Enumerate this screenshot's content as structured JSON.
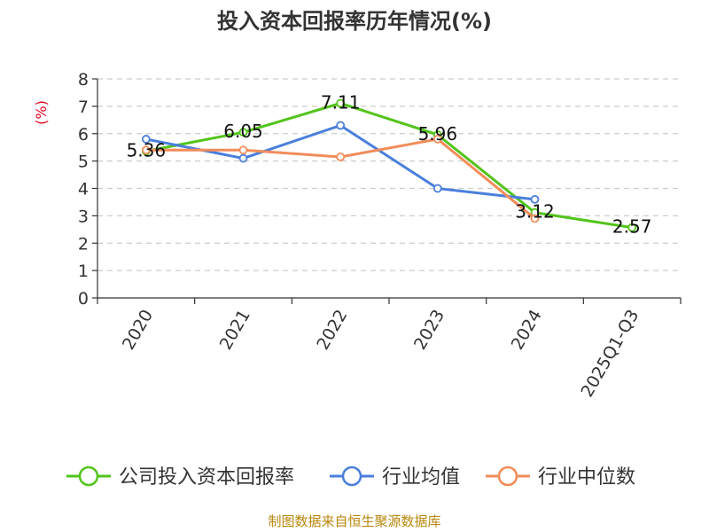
{
  "chart_data": {
    "type": "line",
    "title": "投入资本回报率历年情况(%)",
    "ylabel": "(%)",
    "xlabel": "",
    "ylim": [
      0,
      8
    ],
    "yticks": [
      0,
      1,
      2,
      3,
      4,
      5,
      6,
      7,
      8
    ],
    "grid": true,
    "legend_position": "bottom",
    "categories": [
      "2020",
      "2021",
      "2022",
      "2023",
      "2024",
      "2025Q1-Q3"
    ],
    "series": [
      {
        "name": "公司投入资本回报率",
        "color": "#52c41a",
        "values": [
          5.36,
          6.05,
          7.11,
          5.96,
          3.12,
          2.57
        ],
        "labels": [
          "5.36",
          "6.05",
          "7.11",
          "5.96",
          "3.12",
          "2.57"
        ]
      },
      {
        "name": "行业均值",
        "color": "#4a7fdc",
        "values": [
          5.8,
          5.1,
          6.3,
          4.0,
          3.6,
          null
        ]
      },
      {
        "name": "行业中位数",
        "color": "#f28c5a",
        "values": [
          5.4,
          5.4,
          5.15,
          5.8,
          2.9,
          null
        ]
      }
    ],
    "source": "制图数据来自恒生聚源数据库"
  }
}
